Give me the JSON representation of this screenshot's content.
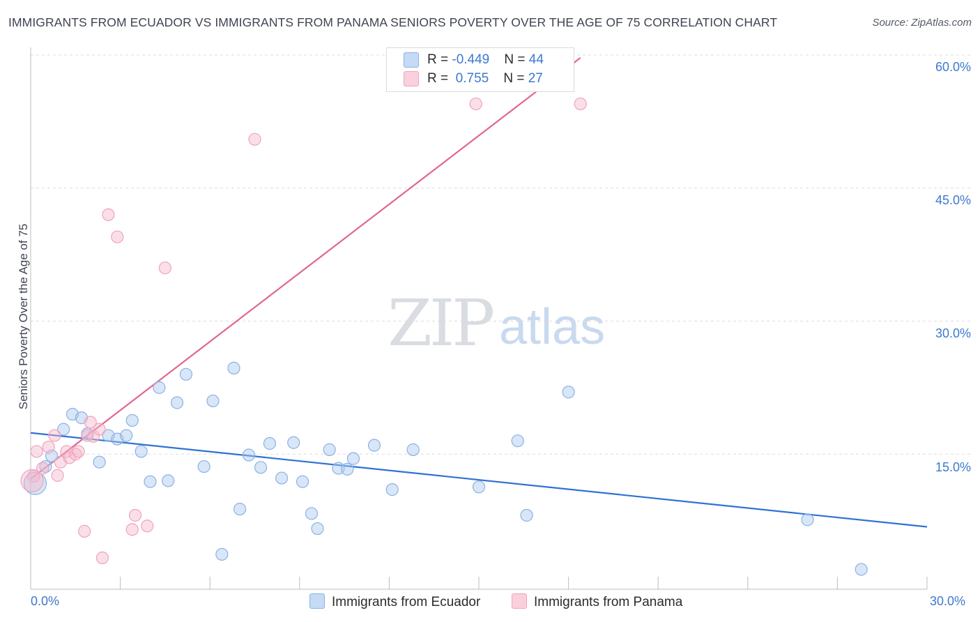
{
  "title": "IMMIGRANTS FROM ECUADOR VS IMMIGRANTS FROM PANAMA SENIORS POVERTY OVER THE AGE OF 75 CORRELATION CHART",
  "source": "Source: ZipAtlas.com",
  "watermark": {
    "zip": "ZIP",
    "atlas": "atlas"
  },
  "legend": {
    "ecuador": {
      "r_label": "R = ",
      "r_value": "-0.449",
      "n_label": "N = ",
      "n_value": "44"
    },
    "panama": {
      "r_label": "R = ",
      "r_value": " 0.755",
      "n_label": "N = ",
      "n_value": "27"
    }
  },
  "colors": {
    "ecuador": "#a9c8ee",
    "ecuador_line": "#2f72d2",
    "panama": "#f5b8cb",
    "panama_line": "#e0668f",
    "tick_text": "#3d78d0"
  },
  "chart_data": {
    "type": "scatter",
    "title": "IMMIGRANTS FROM ECUADOR VS IMMIGRANTS FROM PANAMA SENIORS POVERTY OVER THE AGE OF 75 CORRELATION CHART",
    "xlabel": "",
    "ylabel": "Seniors Poverty Over the Age of 75",
    "xlim": [
      0,
      30
    ],
    "ylim": [
      0,
      60
    ],
    "x_tick_labels": [
      "0.0%",
      "30.0%"
    ],
    "y_tick_labels": [
      "15.0%",
      "30.0%",
      "45.0%",
      "60.0%"
    ],
    "grid": true,
    "legend_position": "top-center",
    "series": [
      {
        "name": "Immigrants from Ecuador",
        "color": "#a9c8ee",
        "points": [
          [
            0.15,
            11.7
          ],
          [
            0.5,
            13.6
          ],
          [
            0.7,
            14.8
          ],
          [
            1.1,
            17.8
          ],
          [
            1.4,
            19.5
          ],
          [
            1.7,
            19.1
          ],
          [
            1.9,
            17.3
          ],
          [
            2.3,
            14.1
          ],
          [
            2.6,
            17.1
          ],
          [
            2.9,
            16.7
          ],
          [
            3.2,
            17.1
          ],
          [
            3.4,
            18.8
          ],
          [
            3.7,
            15.3
          ],
          [
            4.0,
            11.9
          ],
          [
            4.3,
            22.5
          ],
          [
            4.6,
            12.0
          ],
          [
            4.9,
            20.8
          ],
          [
            5.2,
            24.0
          ],
          [
            5.8,
            13.6
          ],
          [
            6.1,
            21.0
          ],
          [
            6.4,
            3.7
          ],
          [
            6.8,
            24.7
          ],
          [
            7.0,
            8.8
          ],
          [
            7.3,
            14.9
          ],
          [
            7.7,
            13.5
          ],
          [
            8.0,
            16.2
          ],
          [
            8.4,
            12.3
          ],
          [
            8.8,
            16.3
          ],
          [
            9.1,
            11.9
          ],
          [
            9.4,
            8.3
          ],
          [
            9.6,
            6.6
          ],
          [
            10.0,
            15.5
          ],
          [
            10.3,
            13.4
          ],
          [
            10.6,
            13.3
          ],
          [
            10.8,
            14.5
          ],
          [
            11.5,
            16.0
          ],
          [
            12.1,
            11.0
          ],
          [
            12.8,
            15.5
          ],
          [
            15.0,
            11.3
          ],
          [
            16.3,
            16.5
          ],
          [
            16.6,
            8.1
          ],
          [
            18.0,
            22.0
          ],
          [
            26.0,
            7.6
          ],
          [
            27.8,
            2.0
          ]
        ]
      },
      {
        "name": "Immigrants from Panama",
        "color": "#f5b8cb",
        "points": [
          [
            0.1,
            12.5
          ],
          [
            0.2,
            15.3
          ],
          [
            0.4,
            13.4
          ],
          [
            0.6,
            15.8
          ],
          [
            0.8,
            17.1
          ],
          [
            0.9,
            12.6
          ],
          [
            1.0,
            14.1
          ],
          [
            1.2,
            15.3
          ],
          [
            1.3,
            14.6
          ],
          [
            1.5,
            15.0
          ],
          [
            1.6,
            15.3
          ],
          [
            1.8,
            6.3
          ],
          [
            1.9,
            17.1
          ],
          [
            2.0,
            18.6
          ],
          [
            2.1,
            17.0
          ],
          [
            2.3,
            17.8
          ],
          [
            2.4,
            3.3
          ],
          [
            2.6,
            42.0
          ],
          [
            2.9,
            39.5
          ],
          [
            3.4,
            6.5
          ],
          [
            3.5,
            8.1
          ],
          [
            3.9,
            6.9
          ],
          [
            4.5,
            36.0
          ],
          [
            7.5,
            50.5
          ],
          [
            14.9,
            54.5
          ],
          [
            18.4,
            54.5
          ],
          [
            0.05,
            12.0
          ]
        ]
      }
    ],
    "trend_lines": [
      {
        "series": "Immigrants from Ecuador",
        "x": [
          0,
          30
        ],
        "y": [
          17.4,
          6.8
        ]
      },
      {
        "series": "Immigrants from Panama",
        "x": [
          0,
          18.4
        ],
        "y": [
          12.2,
          59.7
        ]
      }
    ]
  },
  "bottom_legend": {
    "ecuador_label": "Immigrants from Ecuador",
    "panama_label": "Immigrants from Panama"
  }
}
